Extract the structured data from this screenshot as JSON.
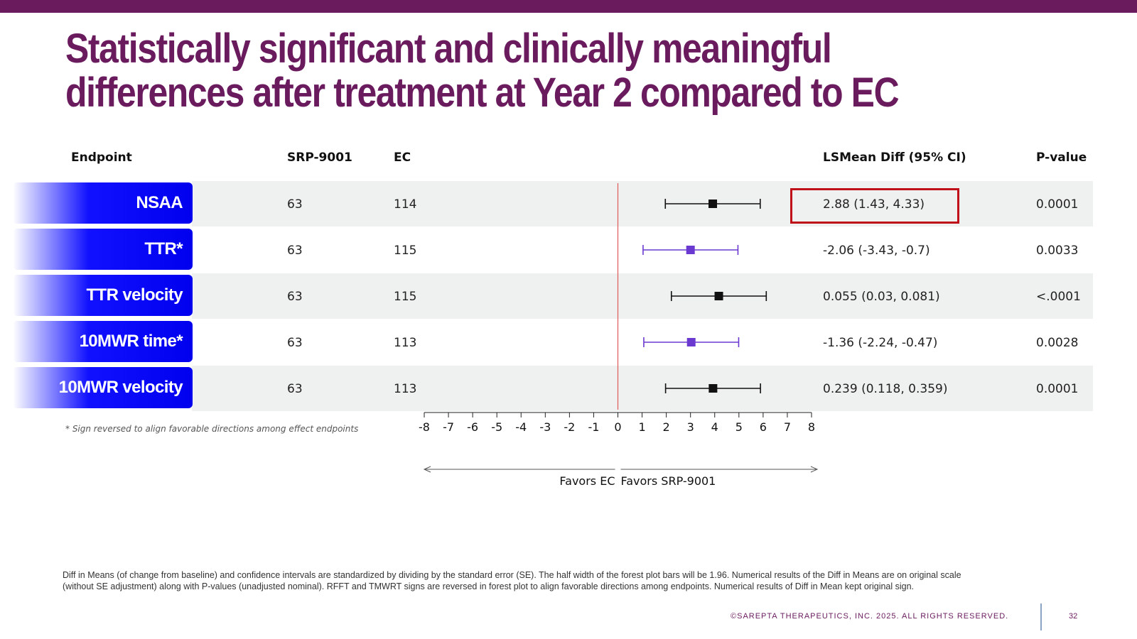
{
  "slide": {
    "title_line1": "Statistically significant and clinically meaningful",
    "title_line2": "differences after treatment at Year 2 compared to EC",
    "footnote_star": "* Sign reversed to align favorable directions among effect endpoints",
    "footnote_line1": "Diff in Means (of change from baseline) and confidence intervals are standardized by dividing by the standard error (SE). The half width of the forest plot bars will be 1.96. Numerical results of the Diff in Means are on original scale",
    "footnote_line2": "(without SE adjustment) along with P-values (unadjusted nominal). RFFT and TMWRT signs are reversed in forest plot to align favorable directions among endpoints. Numerical results of Diff in Mean kept original sign.",
    "copyright": "©SAREPTA THERAPEUTICS, INC. 2025.  ALL RIGHTS RESERVED.",
    "page_number": "32",
    "colors": {
      "brand": "#6a1b5e",
      "label_blue": "#0000ee",
      "highlight": "#c0101a",
      "purple_marker": "#6a3ad0",
      "black_marker": "#111111",
      "zero_line": "#e05a5a"
    }
  },
  "table": {
    "headers": {
      "endpoint": "Endpoint",
      "srp": "SRP-9001",
      "ec": "EC",
      "diff": "LSMean Diff (95% CI)",
      "pvalue": "P-value"
    },
    "rows": [
      {
        "endpoint": "NSAA",
        "srp": "63",
        "ec": "114",
        "diff": "2.88 (1.43,  4.33)",
        "pvalue": "0.0001"
      },
      {
        "endpoint": "TTR*",
        "srp": "63",
        "ec": "115",
        "diff": "-2.06 (-3.43,  -0.7)",
        "pvalue": "0.0033"
      },
      {
        "endpoint": "TTR velocity",
        "srp": "63",
        "ec": "115",
        "diff": "0.055 (0.03,  0.081)",
        "pvalue": "<.0001"
      },
      {
        "endpoint": "10MWR time*",
        "srp": "63",
        "ec": "113",
        "diff": "-1.36 (-2.24,  -0.47)",
        "pvalue": "0.0028"
      },
      {
        "endpoint": "10MWR velocity",
        "srp": "63",
        "ec": "113",
        "diff": "0.239 (0.118,  0.359)",
        "pvalue": "0.0001"
      }
    ],
    "highlighted_row": "NSAA"
  },
  "chart_data": {
    "type": "scatter",
    "subtype": "forest",
    "xlim": [
      -8,
      8
    ],
    "xticks": [
      -8,
      -7,
      -6,
      -5,
      -4,
      -3,
      -2,
      -1,
      0,
      1,
      2,
      3,
      4,
      5,
      6,
      7,
      8
    ],
    "reference_line": 0,
    "left_direction_label": "Favors EC",
    "right_direction_label": "Favors SRP-9001",
    "points": [
      {
        "category": "NSAA",
        "estimate": 3.92,
        "low": 1.96,
        "high": 5.88,
        "color": "#111111"
      },
      {
        "category": "TTR*",
        "estimate": 3.0,
        "low": 1.04,
        "high": 4.96,
        "color": "#6a3ad0"
      },
      {
        "category": "TTR velocity",
        "estimate": 4.17,
        "low": 2.21,
        "high": 6.13,
        "color": "#111111"
      },
      {
        "category": "10MWR time*",
        "estimate": 3.03,
        "low": 1.07,
        "high": 4.99,
        "color": "#6a3ad0"
      },
      {
        "category": "10MWR velocity",
        "estimate": 3.93,
        "low": 1.97,
        "high": 5.89,
        "color": "#111111"
      }
    ]
  }
}
